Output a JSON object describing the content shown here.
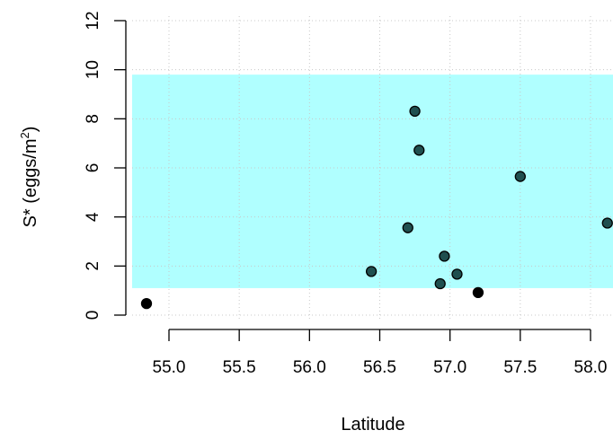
{
  "chart_data": {
    "type": "scatter",
    "title": "",
    "xlabel": "Latitude",
    "ylabel": {
      "main": "S* (eggs/m",
      "superscript": "2",
      "close": ")"
    },
    "xlim": [
      54.8,
      58.2
    ],
    "ylim": [
      0,
      12
    ],
    "x_ticks": [
      55.0,
      55.5,
      56.0,
      56.5,
      57.0,
      57.5,
      58.0
    ],
    "x_tick_labels": [
      "55.0",
      "55.5",
      "56.0",
      "56.5",
      "57.0",
      "57.5",
      "58.0"
    ],
    "y_ticks": [
      0,
      2,
      4,
      6,
      8,
      10,
      12
    ],
    "y_tick_labels": [
      "0",
      "2",
      "4",
      "6",
      "8",
      "10",
      "12"
    ],
    "grid": true,
    "band": {
      "y_min": 1.1,
      "y_max": 9.8,
      "color": "#b0ffff"
    },
    "points": [
      {
        "x": 54.84,
        "y": 0.47,
        "inside_band": false
      },
      {
        "x": 56.44,
        "y": 1.78,
        "inside_band": true
      },
      {
        "x": 56.7,
        "y": 3.56,
        "inside_band": true
      },
      {
        "x": 56.75,
        "y": 8.31,
        "inside_band": true
      },
      {
        "x": 56.78,
        "y": 6.72,
        "inside_band": true
      },
      {
        "x": 56.93,
        "y": 1.28,
        "inside_band": true
      },
      {
        "x": 56.96,
        "y": 2.4,
        "inside_band": true
      },
      {
        "x": 57.05,
        "y": 1.67,
        "inside_band": true
      },
      {
        "x": 57.2,
        "y": 0.92,
        "inside_band": false
      },
      {
        "x": 57.5,
        "y": 5.65,
        "inside_band": true
      },
      {
        "x": 58.12,
        "y": 3.75,
        "inside_band": true
      }
    ],
    "colors": {
      "point_inside": "#1f4f4f",
      "point_outside": "#000000",
      "grid": "#c8c8c8",
      "axis": "#000000"
    }
  }
}
